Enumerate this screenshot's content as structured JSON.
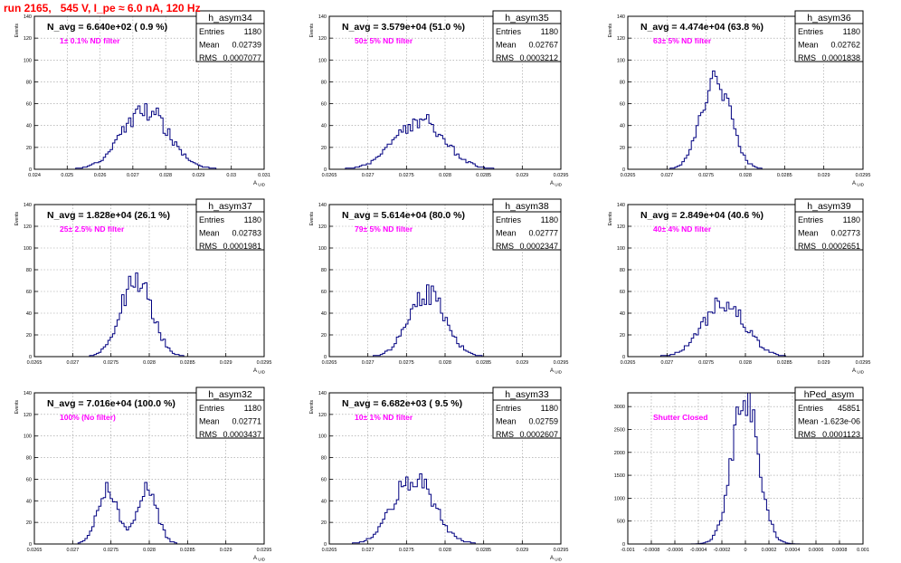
{
  "run_title": "run 2165,   545 V, I_pe ≈ 6.0 nA, 120 Hz",
  "colors": {
    "hist": "#000080",
    "frame": "#000000",
    "grid": "#9a9a9a",
    "pad_text": "#ff00ff",
    "title": "#ff0000"
  },
  "chart_data": [
    {
      "type": "histogram",
      "name": "h_asym34",
      "title": "N_avg = 6.640e+02 ( 0.9 %)",
      "label": "1± 0.1% ND filter",
      "stats": {
        "entries": "1180",
        "mean": "0.02739",
        "rms": "0.0007077"
      },
      "xlim": [
        0.024,
        0.031
      ],
      "ylim": [
        0,
        140
      ],
      "grid": true,
      "xticks": [
        "0.024",
        "0.025",
        "0.026",
        "0.027",
        "0.028",
        "0.029",
        "0.03",
        "0.031"
      ],
      "yticks": [
        "0",
        "20",
        "40",
        "60",
        "80",
        "100",
        "120",
        "140"
      ],
      "xlabel": "A UID",
      "ylabel": "Events",
      "mean": 0.02739,
      "rms": 0.0007077,
      "entries": 1180,
      "peak": 55,
      "bimodal": false
    },
    {
      "type": "histogram",
      "name": "h_asym35",
      "title": "N_avg = 3.579e+04 (51.0 %)",
      "label": "50± 5% ND filter",
      "stats": {
        "entries": "1180",
        "mean": "0.02767",
        "rms": "0.0003212"
      },
      "xlim": [
        0.0265,
        0.0295
      ],
      "ylim": [
        0,
        140
      ],
      "grid": true,
      "xticks": [
        "0.0265",
        "0.027",
        "0.0275",
        "0.028",
        "0.0285",
        "0.029",
        "0.0295"
      ],
      "yticks": [
        "0",
        "20",
        "40",
        "60",
        "80",
        "100",
        "120",
        "140"
      ],
      "xlabel": "A UID",
      "ylabel": "Events",
      "mean": 0.02767,
      "rms": 0.0003212,
      "entries": 1180,
      "peak": 45,
      "bimodal": false
    },
    {
      "type": "histogram",
      "name": "h_asym36",
      "title": "N_avg = 4.474e+04 (63.8 %)",
      "label": "63± 5% ND filter",
      "stats": {
        "entries": "1180",
        "mean": "0.02762",
        "rms": "0.0001838"
      },
      "xlim": [
        0.0265,
        0.0295
      ],
      "ylim": [
        0,
        140
      ],
      "grid": true,
      "xticks": [
        "0.0265",
        "0.027",
        "0.0275",
        "0.028",
        "0.0285",
        "0.029",
        "0.0295"
      ],
      "yticks": [
        "0",
        "20",
        "40",
        "60",
        "80",
        "100",
        "120",
        "140"
      ],
      "xlabel": "A UID",
      "ylabel": "Events",
      "mean": 0.02762,
      "rms": 0.0001838,
      "entries": 1180,
      "peak": 85,
      "bimodal": false
    },
    {
      "type": "histogram",
      "name": "h_asym37",
      "title": "N_avg = 1.828e+04 (26.1 %)",
      "label": "25± 2.5% ND filter",
      "stats": {
        "entries": "1180",
        "mean": "0.02783",
        "rms": "0.0001981"
      },
      "xlim": [
        0.0265,
        0.0295
      ],
      "ylim": [
        0,
        140
      ],
      "grid": true,
      "xticks": [
        "0.0265",
        "0.027",
        "0.0275",
        "0.028",
        "0.0285",
        "0.029",
        "0.0295"
      ],
      "yticks": [
        "0",
        "20",
        "40",
        "60",
        "80",
        "100",
        "120",
        "140"
      ],
      "xlabel": "A UID",
      "ylabel": "Events",
      "mean": 0.02783,
      "rms": 0.0001981,
      "entries": 1180,
      "peak": 73,
      "bimodal": false
    },
    {
      "type": "histogram",
      "name": "h_asym38",
      "title": "N_avg = 5.614e+04 (80.0 %)",
      "label": "79± 5% ND filter",
      "stats": {
        "entries": "1180",
        "mean": "0.02777",
        "rms": "0.0002347"
      },
      "xlim": [
        0.0265,
        0.0295
      ],
      "ylim": [
        0,
        140
      ],
      "grid": true,
      "xticks": [
        "0.0265",
        "0.027",
        "0.0275",
        "0.028",
        "0.0285",
        "0.029",
        "0.0295"
      ],
      "yticks": [
        "0",
        "20",
        "40",
        "60",
        "80",
        "100",
        "120",
        "140"
      ],
      "xlabel": "A UID",
      "ylabel": "Events",
      "mean": 0.02777,
      "rms": 0.0002347,
      "entries": 1180,
      "peak": 58,
      "bimodal": false
    },
    {
      "type": "histogram",
      "name": "h_asym39",
      "title": "N_avg = 2.849e+04 (40.6 %)",
      "label": "40± 4% ND filter",
      "stats": {
        "entries": "1180",
        "mean": "0.02773",
        "rms": "0.0002651"
      },
      "xlim": [
        0.0265,
        0.0295
      ],
      "ylim": [
        0,
        140
      ],
      "grid": true,
      "xticks": [
        "0.0265",
        "0.027",
        "0.0275",
        "0.028",
        "0.0285",
        "0.029",
        "0.0295"
      ],
      "yticks": [
        "0",
        "20",
        "40",
        "60",
        "80",
        "100",
        "120",
        "140"
      ],
      "xlabel": "A UID",
      "ylabel": "Events",
      "mean": 0.02773,
      "rms": 0.0002651,
      "entries": 1180,
      "peak": 50,
      "bimodal": false
    },
    {
      "type": "histogram",
      "name": "h_asym32",
      "title": "N_avg = 7.016e+04 (100.0 %)",
      "label": "100% (No filter)",
      "stats": {
        "entries": "1180",
        "mean": "0.02771",
        "rms": "0.0003437"
      },
      "xlim": [
        0.0265,
        0.0295
      ],
      "ylim": [
        0,
        140
      ],
      "grid": true,
      "xticks": [
        "0.0265",
        "0.027",
        "0.0275",
        "0.028",
        "0.0285",
        "0.029",
        "0.0295"
      ],
      "yticks": [
        "0",
        "20",
        "40",
        "60",
        "80",
        "100",
        "120",
        "140"
      ],
      "xlabel": "A UID",
      "ylabel": "Events",
      "mean": 0.02771,
      "rms": 0.0003437,
      "entries": 1180,
      "peak": 50,
      "bimodal": true,
      "modes": [
        0.02745,
        0.02797
      ],
      "mode_sigma": 0.00013
    },
    {
      "type": "histogram",
      "name": "h_asym33",
      "title": "N_avg = 6.682e+03 ( 9.5 %)",
      "label": "10± 1% ND filter",
      "stats": {
        "entries": "1180",
        "mean": "0.02759",
        "rms": "0.0002607"
      },
      "xlim": [
        0.0265,
        0.0295
      ],
      "ylim": [
        0,
        140
      ],
      "grid": true,
      "xticks": [
        "0.0265",
        "0.027",
        "0.0275",
        "0.028",
        "0.0285",
        "0.029",
        "0.0295"
      ],
      "yticks": [
        "0",
        "20",
        "40",
        "60",
        "80",
        "100",
        "120",
        "140"
      ],
      "xlabel": "A UID",
      "ylabel": "Events",
      "mean": 0.02759,
      "rms": 0.0002607,
      "entries": 1180,
      "peak": 62,
      "bimodal": false
    },
    {
      "type": "histogram",
      "name": "hPed_asym",
      "title": "",
      "label": "Shutter Closed",
      "stats": {
        "entries": "45851",
        "mean": "-1.623e-06",
        "rms": "0.0001123"
      },
      "xlim": [
        -0.001,
        0.001
      ],
      "ylim": [
        0,
        3300
      ],
      "grid": true,
      "xticks": [
        "-0.001",
        "-0.0008",
        "-0.0006",
        "-0.0004",
        "-0.0002",
        "0",
        "0.0002",
        "0.0004",
        "0.0006",
        "0.0008",
        "0.001"
      ],
      "yticks": [
        "0",
        "500",
        "1000",
        "1500",
        "2000",
        "2500",
        "3000"
      ],
      "yvals": [
        0,
        500,
        1000,
        1500,
        2000,
        2500,
        3000
      ],
      "xlabel": "",
      "ylabel": "",
      "mean": -1.623e-06,
      "rms": 0.0001123,
      "entries": 45851,
      "peak": 3150,
      "bimodal": false
    }
  ]
}
